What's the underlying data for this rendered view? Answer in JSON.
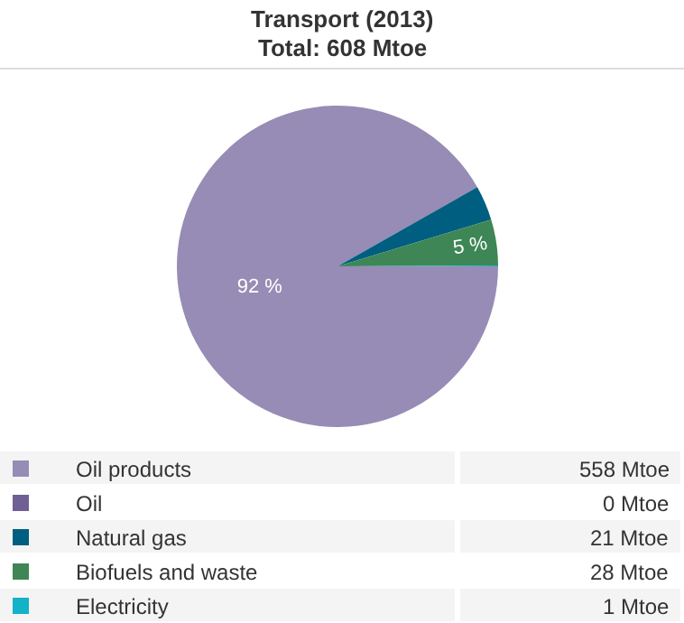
{
  "chart_data": {
    "type": "pie",
    "title": "Transport (2013)",
    "subtitle": "Total: 608 Mtoe",
    "categories": [
      "Oil products",
      "Oil",
      "Natural gas",
      "Biofuels and waste",
      "Electricity"
    ],
    "values": [
      91.8,
      0,
      3.5,
      4.6,
      0.1
    ],
    "colors": [
      "#978cb5",
      "#6f5f94",
      "#005f80",
      "#3f8656",
      "#12b2c8"
    ],
    "value_labels": [
      "92 %",
      null,
      null,
      "5 %",
      null
    ],
    "annotations": [
      "558 Mtoe",
      "0 Mtoe",
      "21 Mtoe",
      "28 Mtoe",
      "1 Mtoe"
    ],
    "legend": "bottom"
  }
}
